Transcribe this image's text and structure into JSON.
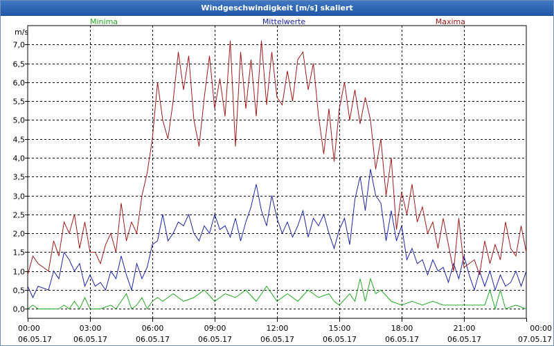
{
  "window": {
    "title": "Windgeschwindigkeit [m/s] skaliert"
  },
  "chart_data": {
    "type": "line",
    "title": "Windgeschwindigkeit [m/s] skaliert",
    "ylabel": "m/s",
    "ylim": [
      -0.25,
      7.5
    ],
    "yticks": [
      "0,0",
      "0,5",
      "1,0",
      "1,5",
      "2,0",
      "2,5",
      "3,0",
      "3,5",
      "4,0",
      "4,5",
      "5,0",
      "5,5",
      "6,0",
      "6,5",
      "7,0"
    ],
    "x_hours_range": [
      0,
      24
    ],
    "xticks": [
      {
        "time": "00:00",
        "date": "06.05.17"
      },
      {
        "time": "03:00",
        "date": "06.05.17"
      },
      {
        "time": "06:00",
        "date": "06.05.17"
      },
      {
        "time": "09:00",
        "date": "06.05.17"
      },
      {
        "time": "12:00",
        "date": "06.05.17"
      },
      {
        "time": "15:00",
        "date": "06.05.17"
      },
      {
        "time": "18:00",
        "date": "06.05.17"
      },
      {
        "time": "21:00",
        "date": "06.05.17"
      },
      {
        "time": "00:00",
        "date": "07.05.17"
      }
    ],
    "legend": {
      "position": "top",
      "entries": [
        "Minima",
        "Mittelwerte",
        "Maxima"
      ]
    },
    "series": [
      {
        "name": "Minima",
        "color": "#22aa22",
        "points": [
          [
            0,
            0.0
          ],
          [
            0.25,
            0.1
          ],
          [
            0.5,
            0.0
          ],
          [
            1.0,
            0.0
          ],
          [
            1.5,
            0.0
          ],
          [
            1.75,
            0.1
          ],
          [
            2.0,
            0.0
          ],
          [
            2.25,
            0.2
          ],
          [
            2.5,
            0.0
          ],
          [
            2.75,
            0.3
          ],
          [
            3.0,
            0.0
          ],
          [
            3.5,
            0.0
          ],
          [
            4.0,
            0.1
          ],
          [
            4.25,
            0.0
          ],
          [
            4.5,
            0.2
          ],
          [
            4.75,
            0.4
          ],
          [
            5.0,
            0.0
          ],
          [
            5.25,
            0.1
          ],
          [
            5.5,
            0.3
          ],
          [
            5.75,
            0.0
          ],
          [
            6.0,
            0.2
          ],
          [
            6.25,
            0.3
          ],
          [
            6.5,
            0.2
          ],
          [
            7.0,
            0.4
          ],
          [
            7.5,
            0.2
          ],
          [
            8.0,
            0.3
          ],
          [
            8.5,
            0.5
          ],
          [
            9.0,
            0.2
          ],
          [
            9.5,
            0.4
          ],
          [
            10.0,
            0.3
          ],
          [
            10.5,
            0.5
          ],
          [
            11.0,
            0.2
          ],
          [
            11.5,
            0.6
          ],
          [
            12.0,
            0.2
          ],
          [
            12.5,
            0.4
          ],
          [
            13.0,
            0.2
          ],
          [
            13.5,
            0.5
          ],
          [
            14.0,
            0.3
          ],
          [
            14.5,
            0.4
          ],
          [
            14.75,
            0.2
          ],
          [
            15.0,
            0.1
          ],
          [
            15.5,
            0.4
          ],
          [
            15.75,
            0.2
          ],
          [
            16.0,
            0.8
          ],
          [
            16.25,
            0.2
          ],
          [
            16.5,
            0.8
          ],
          [
            16.75,
            0.4
          ],
          [
            17.0,
            0.5
          ],
          [
            17.5,
            0.2
          ],
          [
            18.0,
            0.1
          ],
          [
            18.5,
            0.2
          ],
          [
            19.0,
            0.1
          ],
          [
            19.5,
            0.2
          ],
          [
            20.0,
            0.1
          ],
          [
            21.0,
            0.1
          ],
          [
            21.5,
            0.1
          ],
          [
            22.0,
            0.1
          ],
          [
            22.25,
            0.5
          ],
          [
            22.5,
            0.0
          ],
          [
            22.75,
            0.5
          ],
          [
            23.0,
            0.0
          ],
          [
            23.5,
            0.1
          ],
          [
            24.0,
            0.0
          ]
        ]
      },
      {
        "name": "Mittelwerte",
        "color": "#1a22aa",
        "points": [
          [
            0,
            0.6
          ],
          [
            0.25,
            0.3
          ],
          [
            0.5,
            0.6
          ],
          [
            1.0,
            0.5
          ],
          [
            1.25,
            1.0
          ],
          [
            1.5,
            0.8
          ],
          [
            1.75,
            1.5
          ],
          [
            2.0,
            1.3
          ],
          [
            2.25,
            1.0
          ],
          [
            2.5,
            1.2
          ],
          [
            2.75,
            0.6
          ],
          [
            3.0,
            0.9
          ],
          [
            3.25,
            0.6
          ],
          [
            3.5,
            0.7
          ],
          [
            3.75,
            0.5
          ],
          [
            4.0,
            1.0
          ],
          [
            4.25,
            0.8
          ],
          [
            4.5,
            1.4
          ],
          [
            4.75,
            0.9
          ],
          [
            5.0,
            0.5
          ],
          [
            5.25,
            1.2
          ],
          [
            5.5,
            0.8
          ],
          [
            5.75,
            1.1
          ],
          [
            6.0,
            1.7
          ],
          [
            6.25,
            1.8
          ],
          [
            6.5,
            2.5
          ],
          [
            6.75,
            1.8
          ],
          [
            7.0,
            2.0
          ],
          [
            7.25,
            2.3
          ],
          [
            7.5,
            2.2
          ],
          [
            7.75,
            2.5
          ],
          [
            8.0,
            2.0
          ],
          [
            8.25,
            1.8
          ],
          [
            8.5,
            2.2
          ],
          [
            8.75,
            2.0
          ],
          [
            9.0,
            2.5
          ],
          [
            9.25,
            2.1
          ],
          [
            9.5,
            2.2
          ],
          [
            9.75,
            1.9
          ],
          [
            10.0,
            2.4
          ],
          [
            10.25,
            1.8
          ],
          [
            10.5,
            2.3
          ],
          [
            10.75,
            2.7
          ],
          [
            11.0,
            3.3
          ],
          [
            11.25,
            2.6
          ],
          [
            11.5,
            2.2
          ],
          [
            11.75,
            3.0
          ],
          [
            12.0,
            2.4
          ],
          [
            12.25,
            2.0
          ],
          [
            12.5,
            2.3
          ],
          [
            12.75,
            1.9
          ],
          [
            13.0,
            2.2
          ],
          [
            13.25,
            2.6
          ],
          [
            13.5,
            1.9
          ],
          [
            13.75,
            2.4
          ],
          [
            14.0,
            2.2
          ],
          [
            14.25,
            2.5
          ],
          [
            14.5,
            2.0
          ],
          [
            14.75,
            1.6
          ],
          [
            15.0,
            2.1
          ],
          [
            15.25,
            2.4
          ],
          [
            15.5,
            1.7
          ],
          [
            15.75,
            2.9
          ],
          [
            16.0,
            3.5
          ],
          [
            16.25,
            2.6
          ],
          [
            16.5,
            3.7
          ],
          [
            16.75,
            3.0
          ],
          [
            17.0,
            2.8
          ],
          [
            17.25,
            1.8
          ],
          [
            17.5,
            2.6
          ],
          [
            17.75,
            1.8
          ],
          [
            18.0,
            2.2
          ],
          [
            18.25,
            1.3
          ],
          [
            18.5,
            1.6
          ],
          [
            18.75,
            1.2
          ],
          [
            19.0,
            1.3
          ],
          [
            19.25,
            0.9
          ],
          [
            19.5,
            1.3
          ],
          [
            19.75,
            1.0
          ],
          [
            20.0,
            1.1
          ],
          [
            20.25,
            0.7
          ],
          [
            20.5,
            1.2
          ],
          [
            20.75,
            0.8
          ],
          [
            21.0,
            1.4
          ],
          [
            21.25,
            0.9
          ],
          [
            21.5,
            0.5
          ],
          [
            21.75,
            1.0
          ],
          [
            22.0,
            0.6
          ],
          [
            22.25,
            1.0
          ],
          [
            22.5,
            0.5
          ],
          [
            22.75,
            0.9
          ],
          [
            23.0,
            0.6
          ],
          [
            23.25,
            0.7
          ],
          [
            23.5,
            1.0
          ],
          [
            23.75,
            0.6
          ],
          [
            24.0,
            1.0
          ]
        ]
      },
      {
        "name": "Maxima",
        "color": "#a01818",
        "points": [
          [
            0,
            0.9
          ],
          [
            0.25,
            1.4
          ],
          [
            0.5,
            1.2
          ],
          [
            1.0,
            1.0
          ],
          [
            1.25,
            1.8
          ],
          [
            1.5,
            1.4
          ],
          [
            1.75,
            2.3
          ],
          [
            2.0,
            2.0
          ],
          [
            2.25,
            2.5
          ],
          [
            2.5,
            1.6
          ],
          [
            2.75,
            2.3
          ],
          [
            3.0,
            1.5
          ],
          [
            3.25,
            1.5
          ],
          [
            3.5,
            1.2
          ],
          [
            3.75,
            1.7
          ],
          [
            4.0,
            2.0
          ],
          [
            4.25,
            1.5
          ],
          [
            4.5,
            2.8
          ],
          [
            4.75,
            1.8
          ],
          [
            5.0,
            2.3
          ],
          [
            5.25,
            2.0
          ],
          [
            5.5,
            3.0
          ],
          [
            5.75,
            3.6
          ],
          [
            6.0,
            4.5
          ],
          [
            6.25,
            6.0
          ],
          [
            6.5,
            5.0
          ],
          [
            6.75,
            4.5
          ],
          [
            7.0,
            5.5
          ],
          [
            7.25,
            6.8
          ],
          [
            7.5,
            5.8
          ],
          [
            7.75,
            6.7
          ],
          [
            8.0,
            5.0
          ],
          [
            8.25,
            4.3
          ],
          [
            8.5,
            5.6
          ],
          [
            8.75,
            6.7
          ],
          [
            9.0,
            5.3
          ],
          [
            9.25,
            6.1
          ],
          [
            9.5,
            5.1
          ],
          [
            9.75,
            7.1
          ],
          [
            10.0,
            4.3
          ],
          [
            10.25,
            6.8
          ],
          [
            10.5,
            5.3
          ],
          [
            10.75,
            6.6
          ],
          [
            11.0,
            5.1
          ],
          [
            11.25,
            7.1
          ],
          [
            11.5,
            5.4
          ],
          [
            11.75,
            6.8
          ],
          [
            12.0,
            5.6
          ],
          [
            12.25,
            5.4
          ],
          [
            12.5,
            6.3
          ],
          [
            12.75,
            5.5
          ],
          [
            13.0,
            6.6
          ],
          [
            13.25,
            6.8
          ],
          [
            13.5,
            5.8
          ],
          [
            13.75,
            6.5
          ],
          [
            14.0,
            5.1
          ],
          [
            14.25,
            4.1
          ],
          [
            14.5,
            5.3
          ],
          [
            14.75,
            3.9
          ],
          [
            15.0,
            5.3
          ],
          [
            15.25,
            6.0
          ],
          [
            15.5,
            5.0
          ],
          [
            15.75,
            5.8
          ],
          [
            16.0,
            4.9
          ],
          [
            16.25,
            5.6
          ],
          [
            16.5,
            5.0
          ],
          [
            16.75,
            3.7
          ],
          [
            17.0,
            4.5
          ],
          [
            17.25,
            3.0
          ],
          [
            17.5,
            4.0
          ],
          [
            17.75,
            2.1
          ],
          [
            18.0,
            3.1
          ],
          [
            18.25,
            2.5
          ],
          [
            18.5,
            3.3
          ],
          [
            18.75,
            2.3
          ],
          [
            19.0,
            2.7
          ],
          [
            19.25,
            2.0
          ],
          [
            19.5,
            2.3
          ],
          [
            19.75,
            1.6
          ],
          [
            20.0,
            2.4
          ],
          [
            20.25,
            1.7
          ],
          [
            20.5,
            1.0
          ],
          [
            20.75,
            2.4
          ],
          [
            21.0,
            1.1
          ],
          [
            21.25,
            1.2
          ],
          [
            21.5,
            1.3
          ],
          [
            21.75,
            0.9
          ],
          [
            22.0,
            1.8
          ],
          [
            22.25,
            1.2
          ],
          [
            22.5,
            1.7
          ],
          [
            22.75,
            1.3
          ],
          [
            23.0,
            2.3
          ],
          [
            23.25,
            1.6
          ],
          [
            23.5,
            1.4
          ],
          [
            23.75,
            2.2
          ],
          [
            24.0,
            1.5
          ]
        ]
      }
    ]
  }
}
